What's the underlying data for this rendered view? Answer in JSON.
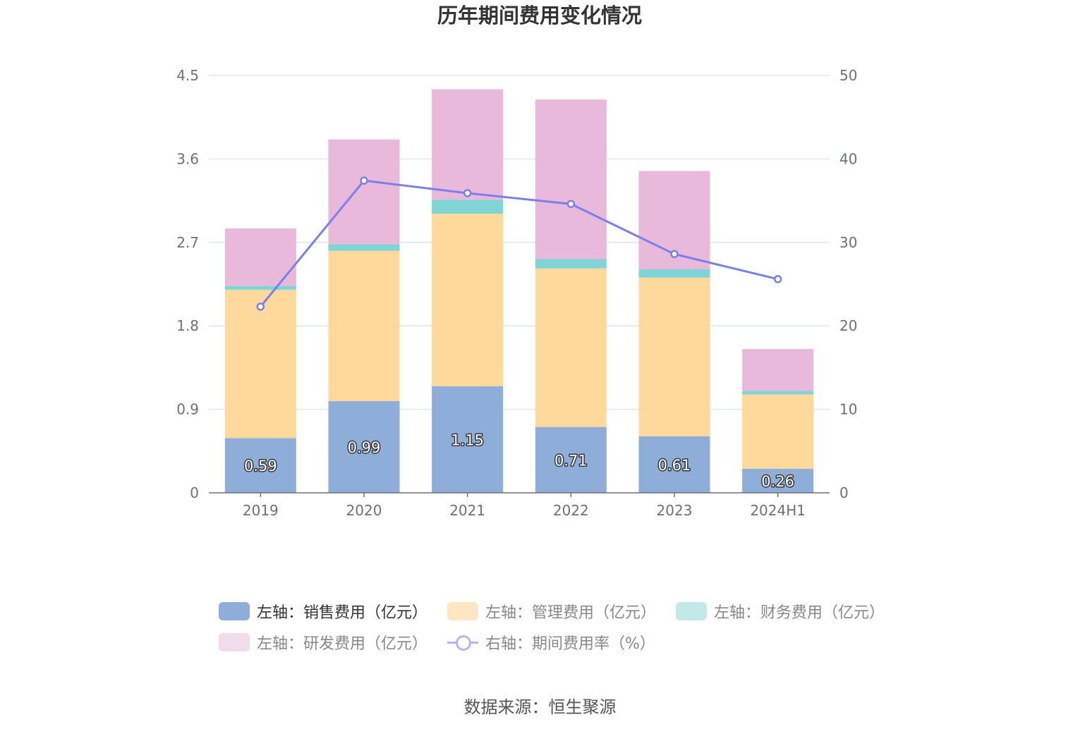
{
  "chart_data": {
    "type": "bar",
    "stacked": true,
    "title": "历年期间费用变化情况",
    "categories": [
      "2019",
      "2020",
      "2021",
      "2022",
      "2023",
      "2024H1"
    ],
    "y_left": {
      "ticks": [
        "0",
        "0.9",
        "1.8",
        "2.7",
        "3.6",
        "4.5"
      ],
      "range": [
        0,
        4.5
      ]
    },
    "y_right": {
      "ticks": [
        "0",
        "10",
        "20",
        "30",
        "40",
        "50"
      ],
      "range": [
        0,
        50
      ]
    },
    "series": [
      {
        "name": "左轴：销售费用（亿元）",
        "axis": "left",
        "type": "bar",
        "color": "#8fadd9",
        "values": [
          0.59,
          0.99,
          1.15,
          0.71,
          0.61,
          0.26
        ],
        "labels": [
          "0.59",
          "0.99",
          "1.15",
          "0.71",
          "0.61",
          "0.26"
        ]
      },
      {
        "name": "左轴：管理费用（亿元）",
        "axis": "left",
        "type": "bar",
        "color": "#fed99b",
        "values": [
          1.6,
          1.62,
          1.86,
          1.71,
          1.71,
          0.8
        ]
      },
      {
        "name": "左轴：财务费用（亿元）",
        "axis": "left",
        "type": "bar",
        "color": "#7fd4d6",
        "values": [
          0.04,
          0.07,
          0.15,
          0.1,
          0.09,
          0.04
        ]
      },
      {
        "name": "左轴：研发费用（亿元）",
        "axis": "left",
        "type": "bar",
        "color": "#e8b9da",
        "values": [
          0.62,
          1.13,
          1.19,
          1.72,
          1.06,
          0.45
        ]
      },
      {
        "name": "右轴：期间费用率（%）",
        "axis": "right",
        "type": "line",
        "color": "#7b7fee",
        "values": [
          22.3,
          37.4,
          35.9,
          34.6,
          28.6,
          25.6
        ]
      }
    ]
  },
  "legend": {
    "items": [
      {
        "label": "左轴：销售费用（亿元）",
        "color": "#8fadd9"
      },
      {
        "label": "左轴：管理费用（亿元）",
        "color": "#fde6c1"
      },
      {
        "label": "左轴：财务费用（亿元）",
        "color": "#c2e8e9"
      },
      {
        "label": "左轴：研发费用（亿元）",
        "color": "#f1dcec"
      },
      {
        "label": "右轴：期间费用率（%）",
        "color": "#b4b5f3"
      }
    ]
  },
  "source": "数据来源：恒生聚源"
}
